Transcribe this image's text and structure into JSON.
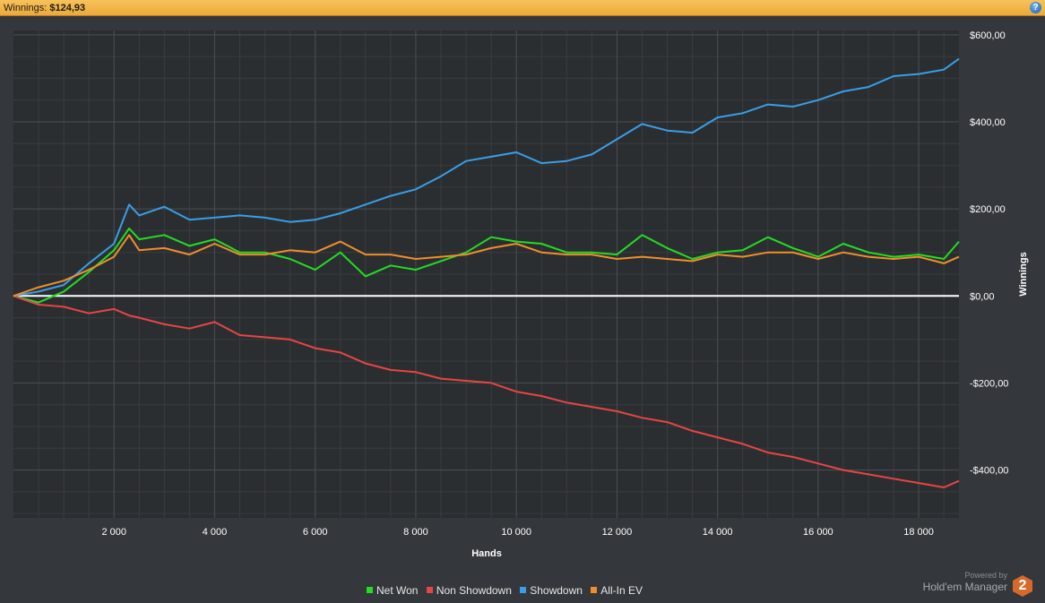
{
  "header": {
    "winnings_label": "Winnings:",
    "winnings_value": "$124,93",
    "help_icon": "question-icon",
    "help_label": "?"
  },
  "branding": {
    "powered_by": "Powered by",
    "product": "Hold'em Manager",
    "logo_text": "2"
  },
  "colors": {
    "background": "#34373b",
    "plot_background": "#2b2e31",
    "net_won": "#22dd22",
    "non_showdown": "#e84444",
    "showdown": "#3a9ee6",
    "all_in_ev": "#f08e2a",
    "zero_line": "#ffffff"
  },
  "chart_data": {
    "type": "line",
    "title": "",
    "xlabel": "Hands",
    "ylabel": "Winnings",
    "xlim": [
      0,
      18800
    ],
    "ylim": [
      -510,
      610
    ],
    "x_ticks": [
      2000,
      4000,
      6000,
      8000,
      10000,
      12000,
      14000,
      16000,
      18000
    ],
    "x_tick_labels": [
      "2 000",
      "4 000",
      "6 000",
      "8 000",
      "10 000",
      "12 000",
      "14 000",
      "16 000",
      "18 000"
    ],
    "y_ticks": [
      600,
      400,
      200,
      0,
      -200,
      -400
    ],
    "y_tick_labels": [
      "$600,00",
      "$400,00",
      "$200,00",
      "$0,00",
      "-$200,00",
      "-$400,00"
    ],
    "grid": true,
    "y_axis_side": "right",
    "legend_position": "bottom",
    "x": [
      0,
      500,
      1000,
      1500,
      2000,
      2300,
      2500,
      3000,
      3500,
      4000,
      4500,
      5000,
      5500,
      6000,
      6500,
      7000,
      7500,
      8000,
      8500,
      9000,
      9500,
      10000,
      10500,
      11000,
      11500,
      12000,
      12500,
      13000,
      13500,
      14000,
      14500,
      15000,
      15500,
      16000,
      16500,
      17000,
      17500,
      18000,
      18500,
      18800
    ],
    "series": [
      {
        "name": "Net Won",
        "values": [
          0,
          -15,
          10,
          55,
          105,
          155,
          130,
          140,
          115,
          130,
          100,
          100,
          85,
          60,
          100,
          45,
          70,
          60,
          80,
          100,
          135,
          125,
          120,
          100,
          100,
          95,
          140,
          110,
          85,
          100,
          105,
          135,
          110,
          90,
          120,
          100,
          90,
          95,
          85,
          125
        ]
      },
      {
        "name": "Non Showdown",
        "values": [
          0,
          -20,
          -25,
          -40,
          -30,
          -45,
          -50,
          -65,
          -75,
          -60,
          -90,
          -95,
          -100,
          -120,
          -130,
          -155,
          -170,
          -175,
          -190,
          -195,
          -200,
          -220,
          -230,
          -245,
          -255,
          -265,
          -280,
          -290,
          -310,
          -325,
          -340,
          -360,
          -370,
          -385,
          -400,
          -410,
          -420,
          -430,
          -440,
          -425
        ]
      },
      {
        "name": "Showdown",
        "values": [
          0,
          10,
          25,
          75,
          120,
          210,
          185,
          205,
          175,
          180,
          185,
          180,
          170,
          175,
          190,
          210,
          230,
          245,
          275,
          310,
          320,
          330,
          305,
          310,
          325,
          360,
          395,
          380,
          375,
          410,
          420,
          440,
          435,
          450,
          470,
          480,
          505,
          510,
          520,
          545
        ]
      },
      {
        "name": "All-In EV",
        "values": [
          0,
          20,
          35,
          60,
          90,
          140,
          105,
          110,
          95,
          120,
          95,
          95,
          105,
          100,
          125,
          95,
          95,
          85,
          90,
          95,
          110,
          120,
          100,
          95,
          95,
          85,
          90,
          85,
          80,
          95,
          90,
          100,
          100,
          85,
          100,
          90,
          85,
          90,
          75,
          90
        ]
      }
    ]
  }
}
